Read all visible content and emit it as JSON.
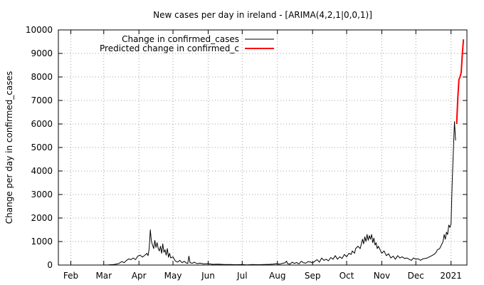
{
  "chart_data": {
    "type": "line",
    "title": "New cases per day in ireland -  [ARIMA(4,2,1|0,0,1)]",
    "xlabel": "",
    "ylabel": "Change per day in confirmed_cases",
    "ylim": [
      0,
      10000
    ],
    "yticks": [
      0,
      1000,
      2000,
      3000,
      4000,
      5000,
      6000,
      7000,
      8000,
      9000,
      10000
    ],
    "xlim": [
      "2020-01-21",
      "2021-01-15"
    ],
    "xticks": [
      {
        "date": "2020-02-01",
        "label": "Feb"
      },
      {
        "date": "2020-03-01",
        "label": "Mar"
      },
      {
        "date": "2020-04-01",
        "label": "Apr"
      },
      {
        "date": "2020-05-01",
        "label": "May"
      },
      {
        "date": "2020-06-01",
        "label": "Jun"
      },
      {
        "date": "2020-07-01",
        "label": "Jul"
      },
      {
        "date": "2020-08-01",
        "label": "Aug"
      },
      {
        "date": "2020-09-01",
        "label": "Sep"
      },
      {
        "date": "2020-10-01",
        "label": "Oct"
      },
      {
        "date": "2020-11-01",
        "label": "Nov"
      },
      {
        "date": "2020-12-01",
        "label": "Dec"
      },
      {
        "date": "2021-01-01",
        "label": "2021"
      }
    ],
    "grid": true,
    "legend_position": "top-left",
    "series": [
      {
        "name": "Change in confirmed_cases",
        "color": "#000000",
        "points": [
          [
            "2020-02-29",
            0
          ],
          [
            "2020-03-05",
            5
          ],
          [
            "2020-03-10",
            20
          ],
          [
            "2020-03-14",
            60
          ],
          [
            "2020-03-17",
            150
          ],
          [
            "2020-03-19",
            100
          ],
          [
            "2020-03-21",
            200
          ],
          [
            "2020-03-23",
            260
          ],
          [
            "2020-03-25",
            230
          ],
          [
            "2020-03-27",
            300
          ],
          [
            "2020-03-29",
            230
          ],
          [
            "2020-03-31",
            380
          ],
          [
            "2020-04-02",
            420
          ],
          [
            "2020-04-04",
            340
          ],
          [
            "2020-04-06",
            410
          ],
          [
            "2020-04-08",
            500
          ],
          [
            "2020-04-09",
            400
          ],
          [
            "2020-04-10",
            700
          ],
          [
            "2020-04-11",
            1500
          ],
          [
            "2020-04-12",
            1000
          ],
          [
            "2020-04-13",
            850
          ],
          [
            "2020-04-14",
            700
          ],
          [
            "2020-04-15",
            1050
          ],
          [
            "2020-04-16",
            750
          ],
          [
            "2020-04-17",
            950
          ],
          [
            "2020-04-18",
            700
          ],
          [
            "2020-04-19",
            600
          ],
          [
            "2020-04-20",
            800
          ],
          [
            "2020-04-21",
            500
          ],
          [
            "2020-04-22",
            900
          ],
          [
            "2020-04-23",
            550
          ],
          [
            "2020-04-24",
            650
          ],
          [
            "2020-04-25",
            420
          ],
          [
            "2020-04-26",
            700
          ],
          [
            "2020-04-27",
            330
          ],
          [
            "2020-04-28",
            500
          ],
          [
            "2020-04-29",
            300
          ],
          [
            "2020-05-01",
            350
          ],
          [
            "2020-05-03",
            180
          ],
          [
            "2020-05-05",
            120
          ],
          [
            "2020-05-07",
            200
          ],
          [
            "2020-05-09",
            100
          ],
          [
            "2020-05-11",
            160
          ],
          [
            "2020-05-13",
            80
          ],
          [
            "2020-05-14",
            70
          ],
          [
            "2020-05-15",
            380
          ],
          [
            "2020-05-16",
            100
          ],
          [
            "2020-05-18",
            80
          ],
          [
            "2020-05-20",
            120
          ],
          [
            "2020-05-22",
            60
          ],
          [
            "2020-05-25",
            80
          ],
          [
            "2020-05-28",
            50
          ],
          [
            "2020-06-01",
            60
          ],
          [
            "2020-06-05",
            30
          ],
          [
            "2020-06-10",
            40
          ],
          [
            "2020-06-15",
            20
          ],
          [
            "2020-06-20",
            25
          ],
          [
            "2020-06-25",
            15
          ],
          [
            "2020-07-01",
            20
          ],
          [
            "2020-07-05",
            10
          ],
          [
            "2020-07-10",
            25
          ],
          [
            "2020-07-15",
            15
          ],
          [
            "2020-07-20",
            20
          ],
          [
            "2020-07-25",
            30
          ],
          [
            "2020-07-28",
            40
          ],
          [
            "2020-07-31",
            60
          ],
          [
            "2020-08-03",
            40
          ],
          [
            "2020-08-06",
            80
          ],
          [
            "2020-08-08",
            100
          ],
          [
            "2020-08-09",
            170
          ],
          [
            "2020-08-10",
            60
          ],
          [
            "2020-08-12",
            40
          ],
          [
            "2020-08-14",
            120
          ],
          [
            "2020-08-16",
            70
          ],
          [
            "2020-08-18",
            110
          ],
          [
            "2020-08-20",
            50
          ],
          [
            "2020-08-22",
            160
          ],
          [
            "2020-08-24",
            100
          ],
          [
            "2020-08-26",
            80
          ],
          [
            "2020-08-28",
            150
          ],
          [
            "2020-08-30",
            130
          ],
          [
            "2020-09-01",
            90
          ],
          [
            "2020-09-03",
            160
          ],
          [
            "2020-09-05",
            230
          ],
          [
            "2020-09-07",
            120
          ],
          [
            "2020-09-09",
            300
          ],
          [
            "2020-09-11",
            200
          ],
          [
            "2020-09-13",
            250
          ],
          [
            "2020-09-15",
            180
          ],
          [
            "2020-09-17",
            320
          ],
          [
            "2020-09-19",
            250
          ],
          [
            "2020-09-21",
            400
          ],
          [
            "2020-09-23",
            250
          ],
          [
            "2020-09-25",
            350
          ],
          [
            "2020-09-27",
            280
          ],
          [
            "2020-09-29",
            450
          ],
          [
            "2020-10-01",
            350
          ],
          [
            "2020-10-03",
            500
          ],
          [
            "2020-10-05",
            450
          ],
          [
            "2020-10-06",
            600
          ],
          [
            "2020-10-08",
            500
          ],
          [
            "2020-10-09",
            700
          ],
          [
            "2020-10-11",
            800
          ],
          [
            "2020-10-13",
            700
          ],
          [
            "2020-10-15",
            1100
          ],
          [
            "2020-10-16",
            900
          ],
          [
            "2020-10-17",
            1200
          ],
          [
            "2020-10-18",
            1000
          ],
          [
            "2020-10-19",
            1300
          ],
          [
            "2020-10-20",
            1050
          ],
          [
            "2020-10-21",
            1250
          ],
          [
            "2020-10-22",
            1100
          ],
          [
            "2020-10-23",
            1300
          ],
          [
            "2020-10-24",
            950
          ],
          [
            "2020-10-25",
            1150
          ],
          [
            "2020-10-26",
            850
          ],
          [
            "2020-10-27",
            950
          ],
          [
            "2020-10-28",
            700
          ],
          [
            "2020-10-29",
            800
          ],
          [
            "2020-10-31",
            600
          ],
          [
            "2020-11-01",
            500
          ],
          [
            "2020-11-03",
            600
          ],
          [
            "2020-11-05",
            400
          ],
          [
            "2020-11-07",
            480
          ],
          [
            "2020-11-09",
            300
          ],
          [
            "2020-11-11",
            380
          ],
          [
            "2020-11-13",
            250
          ],
          [
            "2020-11-15",
            400
          ],
          [
            "2020-11-17",
            300
          ],
          [
            "2020-11-19",
            350
          ],
          [
            "2020-11-21",
            280
          ],
          [
            "2020-11-23",
            300
          ],
          [
            "2020-11-25",
            250
          ],
          [
            "2020-11-27",
            200
          ],
          [
            "2020-11-29",
            300
          ],
          [
            "2020-12-01",
            250
          ],
          [
            "2020-12-03",
            270
          ],
          [
            "2020-12-05",
            200
          ],
          [
            "2020-12-07",
            260
          ],
          [
            "2020-12-09",
            280
          ],
          [
            "2020-12-11",
            300
          ],
          [
            "2020-12-13",
            350
          ],
          [
            "2020-12-15",
            400
          ],
          [
            "2020-12-17",
            450
          ],
          [
            "2020-12-19",
            550
          ],
          [
            "2020-12-20",
            650
          ],
          [
            "2020-12-22",
            700
          ],
          [
            "2020-12-24",
            900
          ],
          [
            "2020-12-25",
            1000
          ],
          [
            "2020-12-26",
            1300
          ],
          [
            "2020-12-27",
            1100
          ],
          [
            "2020-12-28",
            1400
          ],
          [
            "2020-12-29",
            1300
          ],
          [
            "2020-12-30",
            1700
          ],
          [
            "2020-12-31",
            1600
          ],
          [
            "2021-01-01",
            1750
          ],
          [
            "2021-01-02",
            3500
          ],
          [
            "2021-01-03",
            4800
          ],
          [
            "2021-01-04",
            6100
          ],
          [
            "2021-01-05",
            5300
          ]
        ]
      },
      {
        "name": "Predicted change in confirmed_c",
        "color": "#ff0000",
        "points": [
          [
            "2021-01-06",
            6000
          ],
          [
            "2021-01-07",
            7100
          ],
          [
            "2021-01-08",
            7900
          ],
          [
            "2021-01-09",
            8000
          ],
          [
            "2021-01-10",
            8200
          ],
          [
            "2021-01-11",
            9000
          ],
          [
            "2021-01-12",
            9600
          ]
        ]
      }
    ]
  }
}
